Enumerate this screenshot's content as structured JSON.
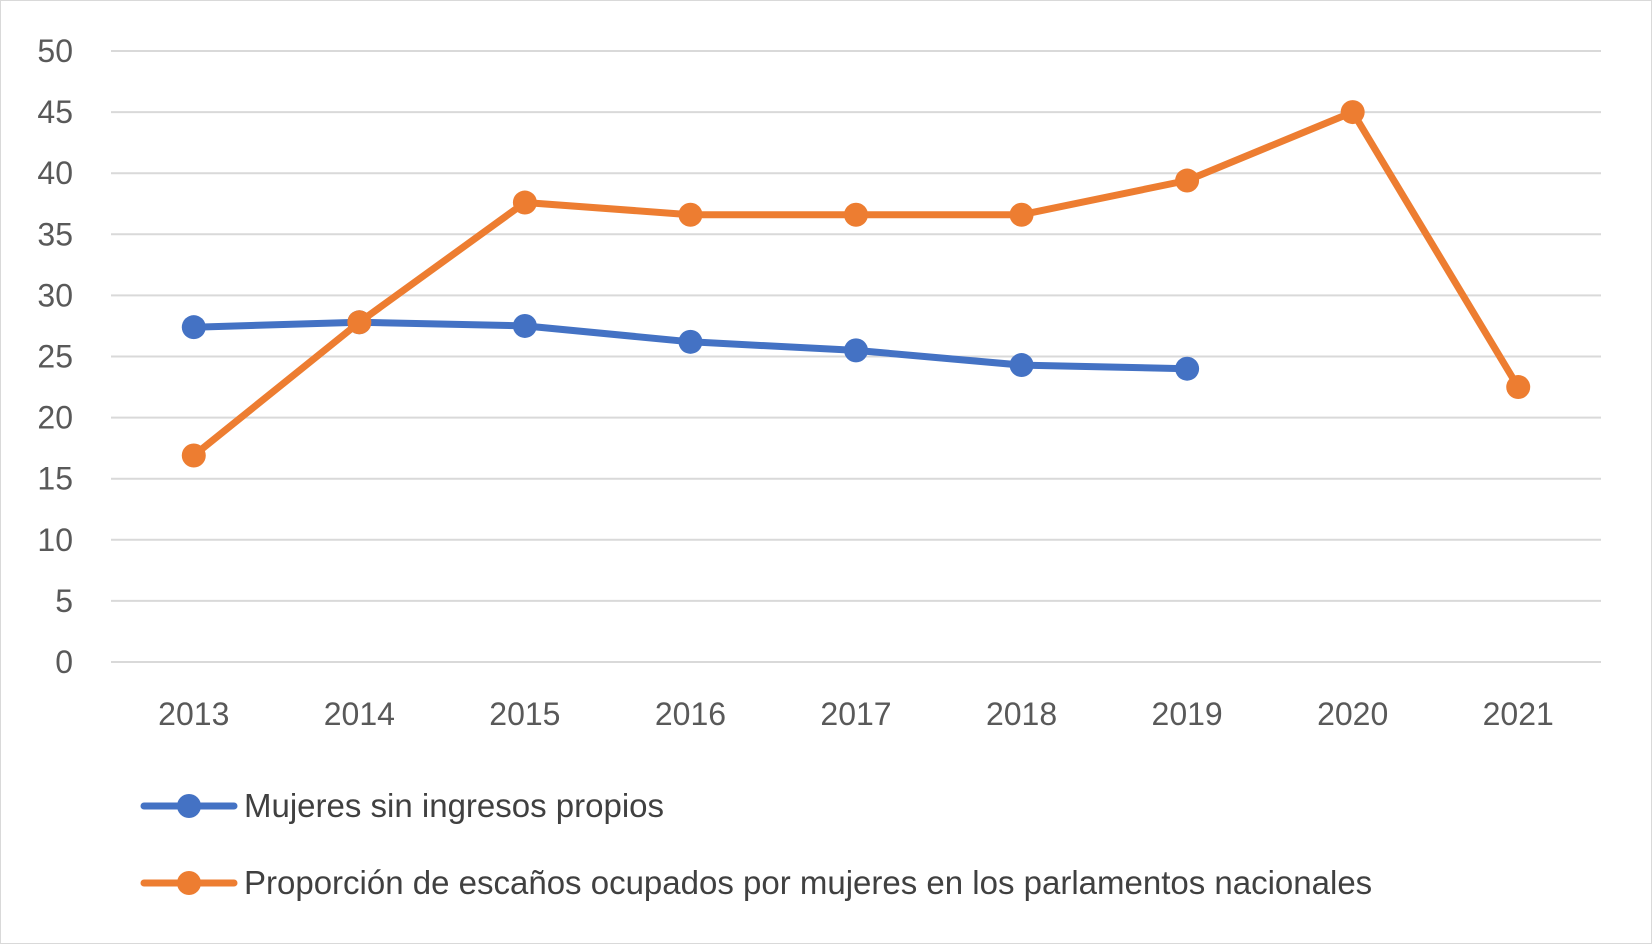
{
  "chart_data": {
    "type": "line",
    "title": "",
    "xlabel": "",
    "ylabel": "",
    "categories": [
      "2013",
      "2014",
      "2015",
      "2016",
      "2017",
      "2018",
      "2019",
      "2020",
      "2021"
    ],
    "ylim": [
      0,
      50
    ],
    "yticks": [
      0,
      5,
      10,
      15,
      20,
      25,
      30,
      35,
      40,
      45,
      50
    ],
    "grid": true,
    "legend_position": "bottom-left",
    "series": [
      {
        "name": "Mujeres sin ingresos propios",
        "color": "#4472c4",
        "values": [
          27.4,
          27.8,
          27.5,
          26.2,
          25.5,
          24.3,
          24.0,
          null,
          null
        ]
      },
      {
        "name": "Proporción de escaños ocupados por mujeres en los parlamentos nacionales",
        "color": "#ed7d31",
        "values": [
          16.9,
          27.8,
          37.6,
          36.6,
          36.6,
          36.6,
          39.4,
          45.0,
          22.5
        ]
      }
    ]
  }
}
